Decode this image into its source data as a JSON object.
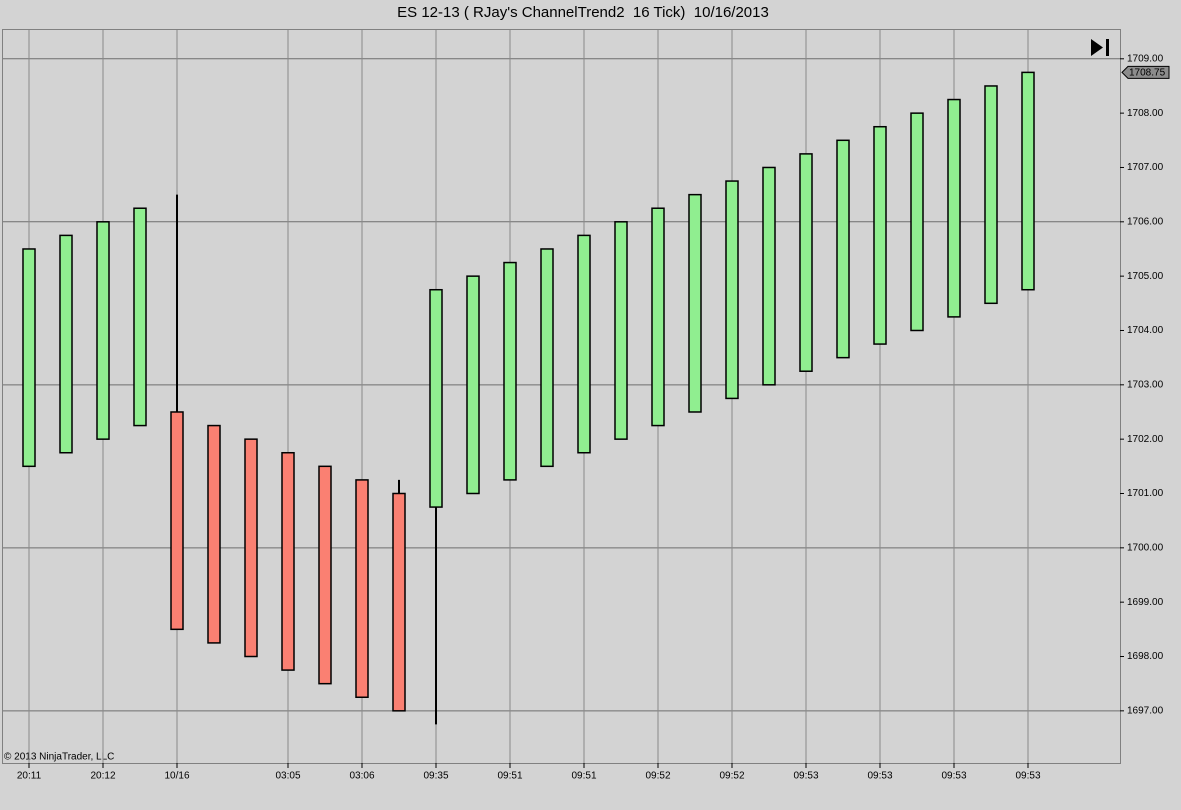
{
  "chart_data": {
    "type": "candlestick",
    "title": "ES 12-13 ( RJay's ChannelTrend2  16 Tick)  10/16/2013",
    "annotation": "© 2013 NinjaTrader, LLC",
    "categories": [
      "20:11",
      null,
      "20:12",
      null,
      "10/16",
      null,
      null,
      "03:05",
      null,
      "03:06",
      null,
      "09:35",
      null,
      "09:51",
      null,
      "09:51",
      null,
      "09:52",
      null,
      "09:52",
      null,
      "09:53",
      null,
      "09:53",
      null,
      "09:53",
      null,
      "09:53"
    ],
    "open": [
      1701.5,
      1701.75,
      1702,
      1702.25,
      1702.5,
      1702.25,
      1702,
      1701.75,
      1701.5,
      1701.25,
      1701,
      1700.75,
      1701,
      1701.25,
      1701.5,
      1701.75,
      1702,
      1702.25,
      1702.5,
      1702.75,
      1703,
      1703.25,
      1703.5,
      1703.75,
      1704,
      1704.25,
      1704.5,
      1704.75
    ],
    "high": [
      1705.5,
      1705.75,
      1706,
      1706.25,
      1706.5,
      1702.25,
      1702,
      1701.75,
      1701.5,
      1701.25,
      1701.25,
      1704.75,
      1705,
      1705.25,
      1705.5,
      1705.75,
      1706,
      1706.25,
      1706.5,
      1706.75,
      1707,
      1707.25,
      1707.5,
      1707.75,
      1708,
      1708.25,
      1708.5,
      1708.75
    ],
    "low": [
      1701.5,
      1701.75,
      1702,
      1702.25,
      1698.5,
      1698.25,
      1698,
      1697.75,
      1697.5,
      1697.25,
      1697,
      1696.75,
      1701,
      1701.25,
      1701.5,
      1701.75,
      1702,
      1702.25,
      1702.5,
      1702.75,
      1703,
      1703.25,
      1703.5,
      1703.75,
      1704,
      1704.25,
      1704.5,
      1704.75
    ],
    "close": [
      1705.5,
      1705.75,
      1706,
      1706.25,
      1698.5,
      1698.25,
      1698,
      1697.75,
      1697.5,
      1697.25,
      1697,
      1704.75,
      1705,
      1705.25,
      1705.5,
      1705.75,
      1706,
      1706.25,
      1706.5,
      1706.75,
      1707,
      1707.25,
      1707.5,
      1707.75,
      1708,
      1708.25,
      1708.5,
      1708.75
    ],
    "up_color": "#90ee90",
    "down_color": "#fa8072",
    "last_price": 1708.75,
    "ylim": [
      1696.04,
      1709.53
    ],
    "yticks": [
      {
        "value": 1697,
        "label": "1697.00"
      },
      {
        "value": 1698,
        "label": "1698.00"
      },
      {
        "value": 1699,
        "label": "1699.00"
      },
      {
        "value": 1700,
        "label": "1700.00"
      },
      {
        "value": 1701,
        "label": "1701.00"
      },
      {
        "value": 1702,
        "label": "1702.00"
      },
      {
        "value": 1703,
        "label": "1703.00"
      },
      {
        "value": 1704,
        "label": "1704.00"
      },
      {
        "value": 1705,
        "label": "1705.00"
      },
      {
        "value": 1706,
        "label": "1706.00"
      },
      {
        "value": 1707,
        "label": "1707.00"
      },
      {
        "value": 1708,
        "label": "1708.00"
      },
      {
        "value": 1709,
        "label": "1709.00"
      }
    ],
    "grid": true
  }
}
